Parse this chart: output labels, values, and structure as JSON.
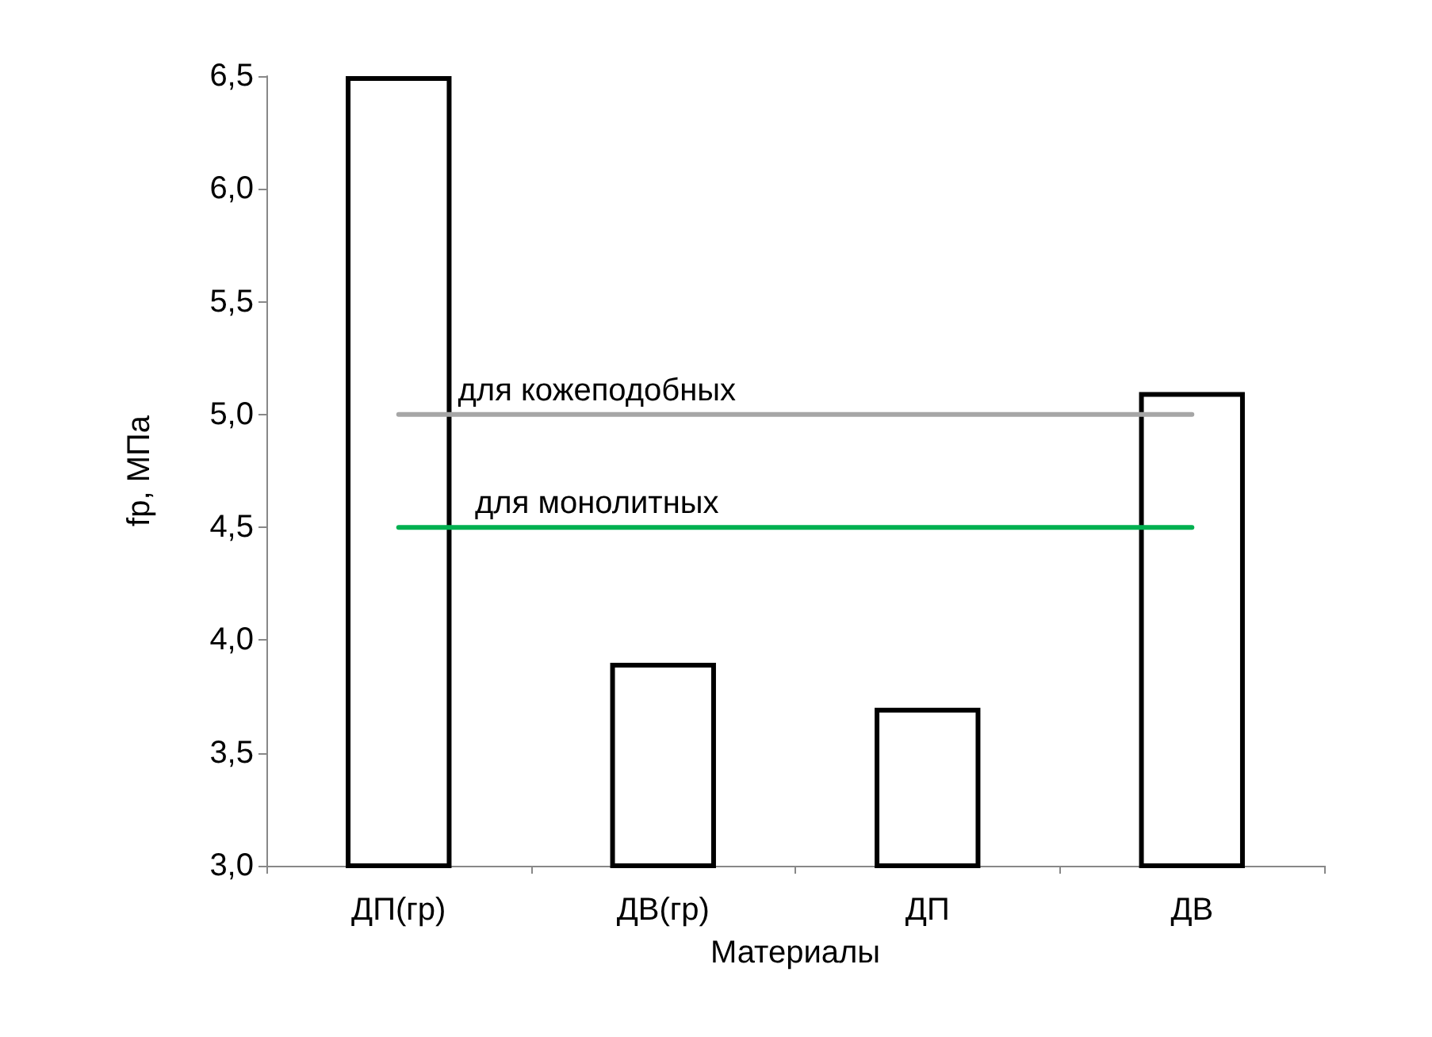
{
  "chart_data": {
    "type": "bar",
    "xlabel": "Материалы",
    "ylabel": "fр, МПа",
    "categories": [
      "ДП(гр)",
      "ДВ(гр)",
      "ДП",
      "ДВ"
    ],
    "series": [
      {
        "color": "#ffffff",
        "values": [
          6.5,
          3.9,
          3.7,
          5.1
        ]
      },
      {
        "type": "line",
        "name": "для кожеподобных",
        "color": "#a6a6a6",
        "values": [
          5.0,
          5.0,
          5.0,
          5.0
        ]
      },
      {
        "type": "line",
        "name": "для монолитных",
        "color": "#00b050",
        "values": [
          4.5,
          4.5,
          4.5,
          4.5
        ]
      }
    ],
    "ylim": [
      3.0,
      6.5
    ],
    "yticks": [
      {
        "value": 3.0,
        "label": "3,0"
      },
      {
        "value": 3.5,
        "label": "3,5"
      },
      {
        "value": 4.0,
        "label": "4,0"
      },
      {
        "value": 4.5,
        "label": "4,5"
      },
      {
        "value": 5.0,
        "label": "5,0"
      },
      {
        "value": 5.5,
        "label": "5,5"
      },
      {
        "value": 6.0,
        "label": "6,0"
      },
      {
        "value": 6.5,
        "label": "6,5"
      }
    ],
    "grid": false,
    "legend": false,
    "marker": "none",
    "line_style": "solid"
  }
}
